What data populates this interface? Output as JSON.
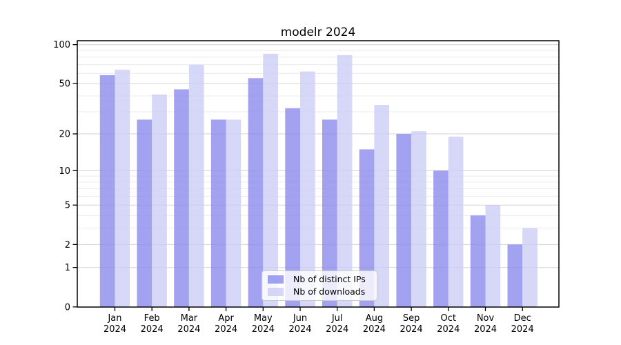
{
  "chart_data": {
    "type": "bar",
    "title": "modelr 2024",
    "categories": [
      "Jan",
      "Feb",
      "Mar",
      "Apr",
      "May",
      "Jun",
      "Jul",
      "Aug",
      "Sep",
      "Oct",
      "Nov",
      "Dec"
    ],
    "year": "2024",
    "series": [
      {
        "name": "Nb of distinct IPs",
        "color": "#8888ec",
        "values": [
          58,
          26,
          45,
          26,
          55,
          32,
          26,
          15,
          20,
          10,
          4,
          2
        ]
      },
      {
        "name": "Nb of downloads",
        "color": "#ccccf6",
        "values": [
          64,
          41,
          70,
          26,
          85,
          62,
          83,
          34,
          21,
          19,
          5,
          3
        ]
      }
    ],
    "y_axis": {
      "scale": "symlog",
      "major_ticks": [
        0,
        1,
        2,
        5,
        10,
        20,
        50,
        100
      ],
      "minor_ticks": [
        3,
        4,
        6,
        7,
        8,
        9,
        30,
        40,
        60,
        70,
        80,
        90
      ],
      "ylim": [
        0,
        100
      ]
    },
    "legend": {
      "position": "inside-bottom-center"
    },
    "grid": {
      "major_color": "#d3d3d3",
      "minor_color": "#ebebeb"
    },
    "bar_opacity": 0.78
  }
}
